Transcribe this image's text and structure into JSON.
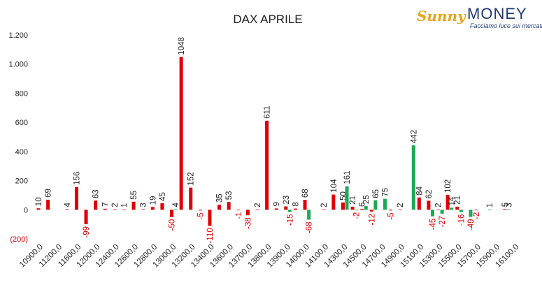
{
  "chart_data": {
    "type": "bar",
    "title": "DAX APRILE",
    "logo": {
      "brand": "Sunny",
      "brand2": "MONEY",
      "tagline": "Facciamo luce sui mercati"
    },
    "categories": [
      "10900,0",
      null,
      "11200,0",
      null,
      "11600,0",
      null,
      "12000,0",
      null,
      "12400,0",
      null,
      "12600,0",
      null,
      "12800,0",
      null,
      "13000,0",
      null,
      "13200,0",
      null,
      "13400,0",
      null,
      "13600,0",
      null,
      "13700,0",
      null,
      "13800,0",
      null,
      "13900,0",
      null,
      "14000,0",
      null,
      "14100,0",
      null,
      "14300,0",
      null,
      "14500,0",
      null,
      "14700,0",
      null,
      "14900,0",
      null,
      "15100,0",
      null,
      "15300,0",
      null,
      "15500,0",
      null,
      "15700,0",
      null,
      "15900,0",
      null,
      "16100,0"
    ],
    "series": [
      {
        "color": "#e00000",
        "values": [
          10,
          69,
          null,
          4,
          156,
          -99,
          63,
          7,
          2,
          1,
          55,
          3,
          19,
          45,
          -50,
          1048,
          152,
          -5,
          -110,
          35,
          53,
          -1,
          -38,
          2,
          611,
          9,
          23,
          8,
          68,
          null,
          2,
          104,
          50,
          21,
          6,
          -12,
          null,
          -5,
          2,
          null,
          84,
          62,
          2,
          102,
          21,
          null,
          -2,
          null,
          null,
          5,
          null
        ]
      },
      {
        "color": "#1aaa55",
        "values": [
          null,
          null,
          null,
          null,
          null,
          null,
          null,
          null,
          null,
          null,
          null,
          null,
          null,
          null,
          4,
          null,
          null,
          null,
          null,
          null,
          null,
          null,
          null,
          null,
          null,
          null,
          -15,
          null,
          -68,
          null,
          null,
          null,
          161,
          -2,
          25,
          65,
          75,
          null,
          null,
          442,
          null,
          -45,
          -27,
          14,
          -16,
          -49,
          null,
          1,
          null,
          3,
          null
        ]
      }
    ],
    "ylim": [
      -200,
      1200
    ],
    "yticks": [
      {
        "value": -200,
        "label": "(200)"
      },
      0,
      200,
      400,
      600,
      800,
      {
        "value": 1000,
        "label": "1.000"
      },
      {
        "value": 1200,
        "label": "1.200"
      }
    ],
    "negative_label_color": "#e00000"
  }
}
